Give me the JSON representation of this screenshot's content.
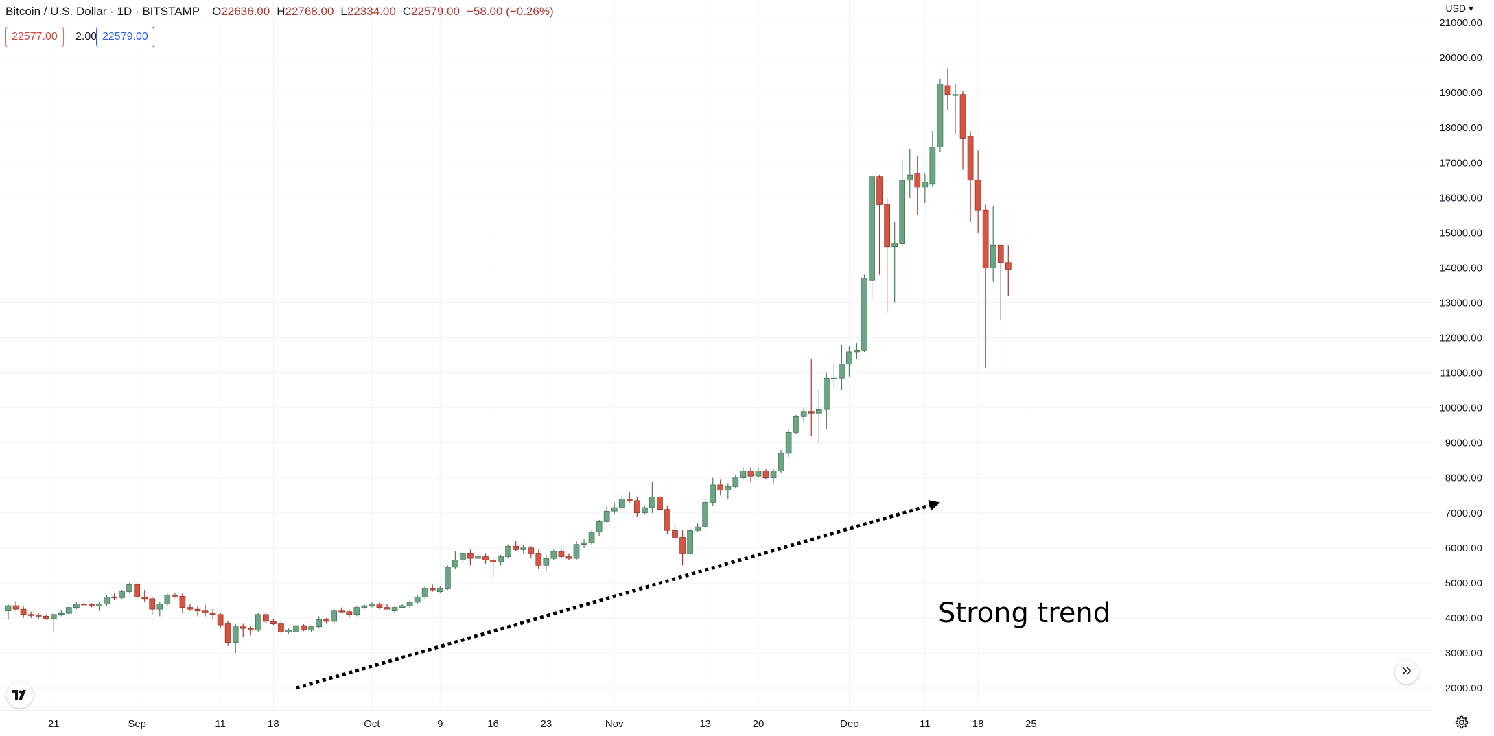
{
  "header": {
    "symbol": "Bitcoin / U.S. Dollar · 1D · BITSTAMP",
    "open": "22636.00",
    "high": "22768.00",
    "low": "22334.00",
    "close": "22579.00",
    "change": "−58.00 (−0.26%)",
    "bid": "22577.00",
    "spread": "2.00",
    "ask": "22579.00",
    "currency": "USD"
  },
  "colors": {
    "up": "#6ba583",
    "down": "#d75442",
    "wick_down": "#a8362a",
    "grid": "#f0f3fa",
    "axis_text": "#131722"
  },
  "icons": {
    "logo": "tradingview-logo-icon",
    "scroll": "double-chevron-right-icon",
    "settings": "gear-icon"
  },
  "chart_data": {
    "type": "candlestick",
    "yaxis_labels": [
      "2000.00",
      "3000.00",
      "4000.00",
      "5000.00",
      "6000.00",
      "7000.00",
      "8000.00",
      "9000.00",
      "10000.00",
      "11000.00",
      "12000.00",
      "13000.00",
      "14000.00",
      "15000.00",
      "16000.00",
      "17000.00",
      "18000.00",
      "19000.00",
      "20000.00",
      "21000.00"
    ],
    "xaxis_labels": [
      "21",
      "Sep",
      "11",
      "18",
      "Oct",
      "9",
      "16",
      "23",
      "Nov",
      "13",
      "20",
      "Dec",
      "11",
      "18",
      "25"
    ],
    "ylim": [
      1330,
      21900
    ],
    "annotation": "Strong trend",
    "trend_arrow": {
      "from_bar": 38,
      "from_value": 2000,
      "to_bar": 123,
      "to_value": 7300
    },
    "candles": [
      {
        "o": 4200,
        "h": 4400,
        "l": 3950,
        "c": 4350
      },
      {
        "o": 4350,
        "h": 4480,
        "l": 4200,
        "c": 4250
      },
      {
        "o": 4250,
        "h": 4350,
        "l": 4000,
        "c": 4100
      },
      {
        "o": 4100,
        "h": 4180,
        "l": 4000,
        "c": 4080
      },
      {
        "o": 4080,
        "h": 4150,
        "l": 3980,
        "c": 4050
      },
      {
        "o": 4050,
        "h": 4100,
        "l": 3950,
        "c": 3980
      },
      {
        "o": 3980,
        "h": 4150,
        "l": 3600,
        "c": 4100
      },
      {
        "o": 4100,
        "h": 4220,
        "l": 4050,
        "c": 4130
      },
      {
        "o": 4130,
        "h": 4350,
        "l": 4100,
        "c": 4300
      },
      {
        "o": 4300,
        "h": 4450,
        "l": 4250,
        "c": 4400
      },
      {
        "o": 4400,
        "h": 4450,
        "l": 4320,
        "c": 4380
      },
      {
        "o": 4380,
        "h": 4420,
        "l": 4300,
        "c": 4340
      },
      {
        "o": 4340,
        "h": 4450,
        "l": 4200,
        "c": 4400
      },
      {
        "o": 4400,
        "h": 4650,
        "l": 4350,
        "c": 4600
      },
      {
        "o": 4600,
        "h": 4700,
        "l": 4520,
        "c": 4580
      },
      {
        "o": 4580,
        "h": 4800,
        "l": 4550,
        "c": 4750
      },
      {
        "o": 4750,
        "h": 5000,
        "l": 4700,
        "c": 4950
      },
      {
        "o": 4950,
        "h": 5000,
        "l": 4550,
        "c": 4600
      },
      {
        "o": 4600,
        "h": 4800,
        "l": 4450,
        "c": 4550
      },
      {
        "o": 4550,
        "h": 4600,
        "l": 4100,
        "c": 4250
      },
      {
        "o": 4250,
        "h": 4450,
        "l": 4050,
        "c": 4400
      },
      {
        "o": 4400,
        "h": 4700,
        "l": 4350,
        "c": 4650
      },
      {
        "o": 4650,
        "h": 4700,
        "l": 4580,
        "c": 4620
      },
      {
        "o": 4620,
        "h": 4700,
        "l": 4150,
        "c": 4300
      },
      {
        "o": 4300,
        "h": 4400,
        "l": 4200,
        "c": 4250
      },
      {
        "o": 4250,
        "h": 4350,
        "l": 4050,
        "c": 4200
      },
      {
        "o": 4200,
        "h": 4380,
        "l": 4050,
        "c": 4150
      },
      {
        "o": 4150,
        "h": 4250,
        "l": 3950,
        "c": 4100
      },
      {
        "o": 4100,
        "h": 4150,
        "l": 3700,
        "c": 3800
      },
      {
        "o": 3850,
        "h": 3900,
        "l": 3200,
        "c": 3300
      },
      {
        "o": 3300,
        "h": 3850,
        "l": 3000,
        "c": 3750
      },
      {
        "o": 3750,
        "h": 3850,
        "l": 3450,
        "c": 3700
      },
      {
        "o": 3700,
        "h": 3780,
        "l": 3500,
        "c": 3650
      },
      {
        "o": 3650,
        "h": 4150,
        "l": 3600,
        "c": 4100
      },
      {
        "o": 4100,
        "h": 4180,
        "l": 3850,
        "c": 3900
      },
      {
        "o": 3900,
        "h": 3980,
        "l": 3800,
        "c": 3850
      },
      {
        "o": 3850,
        "h": 3900,
        "l": 3550,
        "c": 3600
      },
      {
        "o": 3600,
        "h": 3700,
        "l": 3550,
        "c": 3650
      },
      {
        "o": 3600,
        "h": 3820,
        "l": 3580,
        "c": 3780
      },
      {
        "o": 3780,
        "h": 3820,
        "l": 3620,
        "c": 3650
      },
      {
        "o": 3650,
        "h": 3780,
        "l": 3600,
        "c": 3750
      },
      {
        "o": 3750,
        "h": 4050,
        "l": 3700,
        "c": 3950
      },
      {
        "o": 3950,
        "h": 4000,
        "l": 3850,
        "c": 3900
      },
      {
        "o": 3900,
        "h": 4250,
        "l": 3850,
        "c": 4200
      },
      {
        "o": 4200,
        "h": 4300,
        "l": 4150,
        "c": 4180
      },
      {
        "o": 4180,
        "h": 4250,
        "l": 4000,
        "c": 4100
      },
      {
        "o": 4100,
        "h": 4350,
        "l": 4050,
        "c": 4300
      },
      {
        "o": 4300,
        "h": 4400,
        "l": 4250,
        "c": 4350
      },
      {
        "o": 4350,
        "h": 4450,
        "l": 4300,
        "c": 4400
      },
      {
        "o": 4400,
        "h": 4450,
        "l": 4250,
        "c": 4300
      },
      {
        "o": 4300,
        "h": 4400,
        "l": 4250,
        "c": 4250
      },
      {
        "o": 4200,
        "h": 4350,
        "l": 4150,
        "c": 4300
      },
      {
        "o": 4300,
        "h": 4400,
        "l": 4280,
        "c": 4350
      },
      {
        "o": 4350,
        "h": 4500,
        "l": 4300,
        "c": 4450
      },
      {
        "o": 4450,
        "h": 4650,
        "l": 4400,
        "c": 4600
      },
      {
        "o": 4600,
        "h": 4900,
        "l": 4550,
        "c": 4850
      },
      {
        "o": 4850,
        "h": 4950,
        "l": 4750,
        "c": 4800
      },
      {
        "o": 4750,
        "h": 4900,
        "l": 4700,
        "c": 4850
      },
      {
        "o": 4850,
        "h": 5500,
        "l": 4800,
        "c": 5450
      },
      {
        "o": 5450,
        "h": 5900,
        "l": 5400,
        "c": 5650
      },
      {
        "o": 5650,
        "h": 5900,
        "l": 5550,
        "c": 5850
      },
      {
        "o": 5850,
        "h": 5950,
        "l": 5500,
        "c": 5700
      },
      {
        "o": 5700,
        "h": 5850,
        "l": 5650,
        "c": 5750
      },
      {
        "o": 5750,
        "h": 5850,
        "l": 5550,
        "c": 5650
      },
      {
        "o": 5650,
        "h": 5700,
        "l": 5150,
        "c": 5600
      },
      {
        "o": 5600,
        "h": 5800,
        "l": 5500,
        "c": 5750
      },
      {
        "o": 5750,
        "h": 6100,
        "l": 5700,
        "c": 6050
      },
      {
        "o": 6050,
        "h": 6200,
        "l": 5900,
        "c": 5950
      },
      {
        "o": 5950,
        "h": 6100,
        "l": 5850,
        "c": 6000
      },
      {
        "o": 6000,
        "h": 6050,
        "l": 5700,
        "c": 5850
      },
      {
        "o": 5850,
        "h": 5950,
        "l": 5400,
        "c": 5500
      },
      {
        "o": 5500,
        "h": 5800,
        "l": 5350,
        "c": 5700
      },
      {
        "o": 5700,
        "h": 5950,
        "l": 5650,
        "c": 5900
      },
      {
        "o": 5900,
        "h": 5950,
        "l": 5700,
        "c": 5750
      },
      {
        "o": 5750,
        "h": 5850,
        "l": 5650,
        "c": 5700
      },
      {
        "o": 5700,
        "h": 6200,
        "l": 5650,
        "c": 6100
      },
      {
        "o": 6100,
        "h": 6250,
        "l": 6000,
        "c": 6150
      },
      {
        "o": 6150,
        "h": 6500,
        "l": 6100,
        "c": 6450
      },
      {
        "o": 6450,
        "h": 6800,
        "l": 6350,
        "c": 6750
      },
      {
        "o": 6750,
        "h": 7200,
        "l": 6700,
        "c": 7050
      },
      {
        "o": 7050,
        "h": 7300,
        "l": 6950,
        "c": 7150
      },
      {
        "o": 7150,
        "h": 7500,
        "l": 7100,
        "c": 7400
      },
      {
        "o": 7400,
        "h": 7600,
        "l": 7300,
        "c": 7350
      },
      {
        "o": 7350,
        "h": 7450,
        "l": 6900,
        "c": 7000
      },
      {
        "o": 7000,
        "h": 7200,
        "l": 6950,
        "c": 7150
      },
      {
        "o": 7150,
        "h": 7900,
        "l": 7000,
        "c": 7450
      },
      {
        "o": 7450,
        "h": 7500,
        "l": 7050,
        "c": 7100
      },
      {
        "o": 7100,
        "h": 7200,
        "l": 6400,
        "c": 6500
      },
      {
        "o": 6500,
        "h": 6700,
        "l": 6200,
        "c": 6300
      },
      {
        "o": 6300,
        "h": 6500,
        "l": 5500,
        "c": 5850
      },
      {
        "o": 5850,
        "h": 6600,
        "l": 5800,
        "c": 6500
      },
      {
        "o": 6500,
        "h": 6700,
        "l": 6450,
        "c": 6600
      },
      {
        "o": 6600,
        "h": 7400,
        "l": 6550,
        "c": 7300
      },
      {
        "o": 7300,
        "h": 8000,
        "l": 7200,
        "c": 7800
      },
      {
        "o": 7800,
        "h": 7950,
        "l": 7500,
        "c": 7650
      },
      {
        "o": 7650,
        "h": 7850,
        "l": 7400,
        "c": 7750
      },
      {
        "o": 7750,
        "h": 8100,
        "l": 7700,
        "c": 8000
      },
      {
        "o": 8000,
        "h": 8300,
        "l": 7950,
        "c": 8200
      },
      {
        "o": 8200,
        "h": 8300,
        "l": 7900,
        "c": 8050
      },
      {
        "o": 8050,
        "h": 8300,
        "l": 8000,
        "c": 8200
      },
      {
        "o": 8200,
        "h": 8250,
        "l": 7950,
        "c": 8000
      },
      {
        "o": 8000,
        "h": 8250,
        "l": 7850,
        "c": 8200
      },
      {
        "o": 8200,
        "h": 8800,
        "l": 8150,
        "c": 8700
      },
      {
        "o": 8700,
        "h": 9400,
        "l": 8600,
        "c": 9300
      },
      {
        "o": 9300,
        "h": 9800,
        "l": 9250,
        "c": 9750
      },
      {
        "o": 9750,
        "h": 10000,
        "l": 9600,
        "c": 9900
      },
      {
        "o": 9900,
        "h": 11400,
        "l": 9200,
        "c": 9850
      },
      {
        "o": 9850,
        "h": 10500,
        "l": 9000,
        "c": 9950
      },
      {
        "o": 9950,
        "h": 11000,
        "l": 9400,
        "c": 10850
      },
      {
        "o": 10850,
        "h": 11300,
        "l": 10600,
        "c": 10850
      },
      {
        "o": 10850,
        "h": 11800,
        "l": 10500,
        "c": 11250
      },
      {
        "o": 11250,
        "h": 11750,
        "l": 10900,
        "c": 11600
      },
      {
        "o": 11600,
        "h": 11850,
        "l": 11400,
        "c": 11650
      },
      {
        "o": 11650,
        "h": 13800,
        "l": 11600,
        "c": 13700
      },
      {
        "o": 13650,
        "h": 16600,
        "l": 13100,
        "c": 16600
      },
      {
        "o": 16600,
        "h": 16650,
        "l": 13800,
        "c": 15800
      },
      {
        "o": 15800,
        "h": 16000,
        "l": 12700,
        "c": 14600
      },
      {
        "o": 14600,
        "h": 15300,
        "l": 13000,
        "c": 14700
      },
      {
        "o": 14700,
        "h": 17100,
        "l": 14600,
        "c": 16500
      },
      {
        "o": 16500,
        "h": 17400,
        "l": 16000,
        "c": 16650
      },
      {
        "o": 16700,
        "h": 17200,
        "l": 15500,
        "c": 16300
      },
      {
        "o": 16300,
        "h": 16700,
        "l": 15850,
        "c": 16450
      },
      {
        "o": 16400,
        "h": 17900,
        "l": 16300,
        "c": 17450
      },
      {
        "o": 17450,
        "h": 19400,
        "l": 17300,
        "c": 19250
      },
      {
        "o": 19200,
        "h": 19700,
        "l": 18500,
        "c": 18950
      },
      {
        "o": 18950,
        "h": 19250,
        "l": 17800,
        "c": 18950
      },
      {
        "o": 18950,
        "h": 19050,
        "l": 16800,
        "c": 17700
      },
      {
        "o": 17750,
        "h": 17900,
        "l": 15300,
        "c": 16500
      },
      {
        "o": 16500,
        "h": 17350,
        "l": 15000,
        "c": 15650
      },
      {
        "o": 15650,
        "h": 15800,
        "l": 11150,
        "c": 14000
      },
      {
        "o": 14000,
        "h": 15750,
        "l": 13600,
        "c": 14650
      },
      {
        "o": 14650,
        "h": 14650,
        "l": 12500,
        "c": 14150
      },
      {
        "o": 14150,
        "h": 14650,
        "l": 13200,
        "c": 13950
      }
    ]
  }
}
